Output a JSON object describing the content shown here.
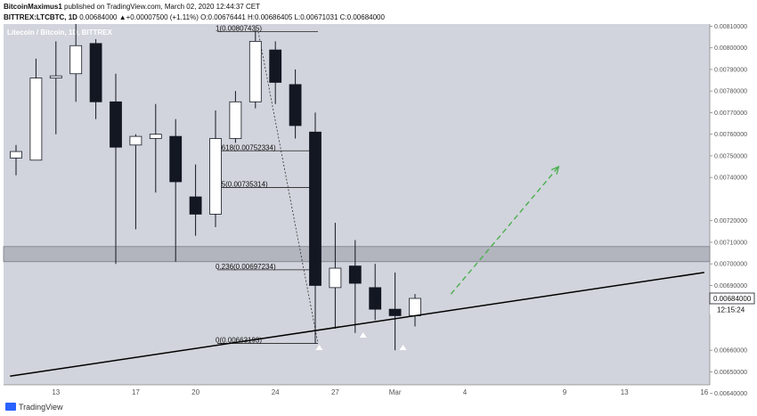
{
  "header": {
    "author": "BitcoinMaximus1",
    "published": "published on TradingView.com, March 02, 2020 12:44:37 CET",
    "symbol": "BITTREX:LTCBTC, 1D",
    "change": "0.00684000 ▲+0.00007500 (+1.11%)",
    "ohlc": "O:0.00676441 H:0.00686405 L:0.00671031 C:0.00684000"
  },
  "footer": {
    "brand": "TradingView"
  },
  "colors": {
    "plot_bg": "#d1d4dc",
    "bull": "#ffffff",
    "bear": "#131722",
    "trend": "#000000",
    "projection": "#4caf50",
    "zone": "#b2b5be"
  },
  "chart_data": {
    "type": "candlestick",
    "watermark": "Litecoin / Bitcoin, 1D, BITTREX",
    "ylim": [
      0.00644,
      0.00811
    ],
    "y_ticks": [
      0.0081,
      0.008,
      0.0079,
      0.0078,
      0.0077,
      0.0076,
      0.0075,
      0.0074,
      0.0072,
      0.0071,
      0.007,
      0.0069,
      0.0066,
      0.0065,
      0.0064
    ],
    "y_tick_labels": [
      "0.00810000",
      "0.00800000",
      "0.00790000",
      "0.00780000",
      "0.00770000",
      "0.00760000",
      "0.00750000",
      "0.00740000",
      "0.00720000",
      "0.00710000",
      "0.00700000",
      "0.00690000",
      "0.00660000",
      "0.00650000",
      "0.00640000"
    ],
    "price_label": "0.00684000",
    "countdown": "12:15:24",
    "x_ticks": [
      "13",
      "17",
      "20",
      "24",
      "27",
      "Mar",
      "4",
      "9",
      "13",
      "16"
    ],
    "candles": [
      {
        "o": 0.00749,
        "h": 0.00755,
        "l": 0.00741,
        "c": 0.00752
      },
      {
        "o": 0.00748,
        "h": 0.00795,
        "l": 0.00748,
        "c": 0.00786
      },
      {
        "o": 0.00786,
        "h": 0.00803,
        "l": 0.0076,
        "c": 0.00787
      },
      {
        "o": 0.00788,
        "h": 0.00812,
        "l": 0.00775,
        "c": 0.00801
      },
      {
        "o": 0.00802,
        "h": 0.00804,
        "l": 0.00767,
        "c": 0.00775
      },
      {
        "o": 0.00775,
        "h": 0.00788,
        "l": 0.007,
        "c": 0.00754
      },
      {
        "o": 0.00755,
        "h": 0.0076,
        "l": 0.00716,
        "c": 0.00759
      },
      {
        "o": 0.00758,
        "h": 0.00774,
        "l": 0.00733,
        "c": 0.0076
      },
      {
        "o": 0.00759,
        "h": 0.00767,
        "l": 0.00701,
        "c": 0.00738
      },
      {
        "o": 0.00731,
        "h": 0.00746,
        "l": 0.00713,
        "c": 0.00723
      },
      {
        "o": 0.00723,
        "h": 0.00771,
        "l": 0.00717,
        "c": 0.00758
      },
      {
        "o": 0.00758,
        "h": 0.0078,
        "l": 0.00756,
        "c": 0.00775
      },
      {
        "o": 0.00775,
        "h": 0.00808,
        "l": 0.00772,
        "c": 0.00803
      },
      {
        "o": 0.00799,
        "h": 0.00803,
        "l": 0.00774,
        "c": 0.00784
      },
      {
        "o": 0.00783,
        "h": 0.0079,
        "l": 0.00758,
        "c": 0.00764
      },
      {
        "o": 0.00761,
        "h": 0.0077,
        "l": 0.00663,
        "c": 0.0069
      },
      {
        "o": 0.00689,
        "h": 0.00719,
        "l": 0.0067,
        "c": 0.00698
      },
      {
        "o": 0.00699,
        "h": 0.00711,
        "l": 0.00668,
        "c": 0.00691
      },
      {
        "o": 0.00689,
        "h": 0.007,
        "l": 0.00674,
        "c": 0.00679
      },
      {
        "o": 0.00679,
        "h": 0.00696,
        "l": 0.0066,
        "c": 0.00676
      },
      {
        "o": 0.00676,
        "h": 0.00686,
        "l": 0.00671,
        "c": 0.00684
      }
    ],
    "fib_levels": [
      {
        "label": "1(0.00807435)",
        "value": 0.00807435
      },
      {
        "label": "0.618(0.00752334)",
        "value": 0.00752334
      },
      {
        "label": "0.5(0.00735314)",
        "value": 0.00735314
      },
      {
        "label": "0.236(0.00697234)",
        "value": 0.00697234
      },
      {
        "label": "0(0.00663193)",
        "value": 0.00663193
      }
    ],
    "support_zone": [
      0.00701,
      0.00708
    ],
    "trendline": [
      {
        "bar": -0.3,
        "price": 0.00648
      },
      {
        "bar": 34.5,
        "price": 0.00696
      }
    ],
    "projection": [
      {
        "bar": 21.8,
        "price": 0.00686
      },
      {
        "bar": 27.2,
        "price": 0.00745
      }
    ],
    "markers": [
      15.2,
      17.4,
      19.4
    ]
  }
}
